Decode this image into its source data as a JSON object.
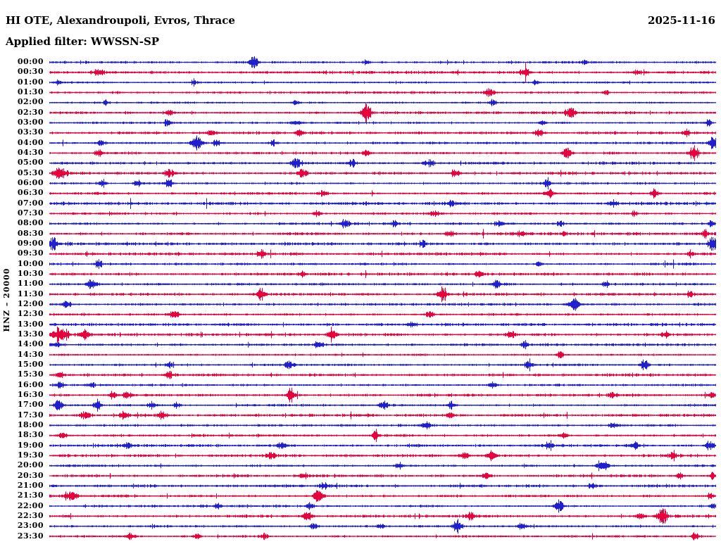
{
  "header": {
    "station_line": "HI OTE, Alexandroupoli, Evros, Thrace",
    "date": "2025-11-16",
    "filter_line": "Applied filter: WWSSN-SP"
  },
  "left_axis_label": "HNZ – 20000",
  "chart_data": {
    "type": "helicorder",
    "title": "HI OTE, Alexandroupoli, Evros, Thrace",
    "date": "2025-11-16",
    "applied_filter": "WWSSN-SP",
    "channel_scale_label": "HNZ – 20000",
    "row_interval_minutes": 30,
    "legend_position": "none",
    "grid": false,
    "palette": {
      "even_rows": "#1f1fd0",
      "odd_rows": "#e8003c"
    },
    "rows": [
      {
        "t": "00:00",
        "c": 0,
        "n": 1.0,
        "ev": [
          [
            360,
            9,
            4
          ],
          [
            520,
            3,
            3
          ],
          [
            830,
            3,
            3
          ]
        ]
      },
      {
        "t": "00:30",
        "c": 1,
        "n": 1.5,
        "ev": [
          [
            140,
            4,
            6
          ],
          [
            745,
            6,
            4
          ],
          [
            905,
            3,
            4
          ]
        ]
      },
      {
        "t": "01:00",
        "c": 0,
        "n": 0.8,
        "ev": [
          [
            82,
            3,
            3
          ],
          [
            275,
            3,
            3
          ],
          [
            760,
            3,
            3
          ]
        ]
      },
      {
        "t": "01:30",
        "c": 1,
        "n": 1.0,
        "ev": [
          [
            695,
            5,
            4
          ],
          [
            860,
            3,
            3
          ]
        ]
      },
      {
        "t": "02:00",
        "c": 0,
        "n": 0.7,
        "ev": [
          [
            150,
            3,
            3
          ],
          [
            420,
            3,
            3
          ],
          [
            700,
            4,
            3
          ]
        ]
      },
      {
        "t": "02:30",
        "c": 1,
        "n": 1.2,
        "ev": [
          [
            240,
            4,
            4
          ],
          [
            520,
            12,
            4
          ],
          [
            810,
            7,
            5
          ]
        ]
      },
      {
        "t": "03:00",
        "c": 0,
        "n": 0.9,
        "ev": [
          [
            237,
            4,
            3
          ],
          [
            420,
            4,
            4
          ],
          [
            770,
            4,
            3
          ],
          [
            1005,
            4,
            3
          ]
        ]
      },
      {
        "t": "03:30",
        "c": 1,
        "n": 1.2,
        "ev": [
          [
            300,
            4,
            4
          ],
          [
            425,
            4,
            4
          ],
          [
            765,
            6,
            4
          ],
          [
            975,
            4,
            3
          ]
        ]
      },
      {
        "t": "04:00",
        "c": 0,
        "n": 1.0,
        "ev": [
          [
            143,
            4,
            3
          ],
          [
            280,
            10,
            5
          ],
          [
            307,
            5,
            3
          ],
          [
            387,
            4,
            3
          ],
          [
            1012,
            13,
            4
          ]
        ]
      },
      {
        "t": "04:30",
        "c": 1,
        "n": 1.1,
        "ev": [
          [
            140,
            5,
            4
          ],
          [
            520,
            4,
            4
          ],
          [
            805,
            8,
            4
          ],
          [
            985,
            11,
            4
          ]
        ]
      },
      {
        "t": "05:00",
        "c": 0,
        "n": 1.4,
        "ev": [
          [
            420,
            6,
            5
          ],
          [
            500,
            4,
            4
          ],
          [
            610,
            4,
            4
          ]
        ]
      },
      {
        "t": "05:30",
        "c": 1,
        "n": 1.2,
        "ev": [
          [
            85,
            9,
            6
          ],
          [
            240,
            5,
            4
          ],
          [
            430,
            6,
            4
          ],
          [
            647,
            4,
            4
          ]
        ]
      },
      {
        "t": "06:00",
        "c": 0,
        "n": 1.0,
        "ev": [
          [
            145,
            5,
            3
          ],
          [
            195,
            5,
            3
          ],
          [
            240,
            8,
            3
          ],
          [
            777,
            5,
            3
          ]
        ]
      },
      {
        "t": "06:30",
        "c": 1,
        "n": 1.1,
        "ev": [
          [
            460,
            4,
            4
          ],
          [
            780,
            5,
            4
          ],
          [
            930,
            5,
            4
          ]
        ]
      },
      {
        "t": "07:00",
        "c": 0,
        "n": 1.6,
        "ev": [
          [
            640,
            4,
            4
          ],
          [
            870,
            4,
            4
          ]
        ]
      },
      {
        "t": "07:30",
        "c": 1,
        "n": 1.1,
        "ev": [
          [
            450,
            4,
            4
          ],
          [
            617,
            4,
            4
          ],
          [
            900,
            3,
            3
          ]
        ]
      },
      {
        "t": "08:00",
        "c": 0,
        "n": 1.0,
        "ev": [
          [
            490,
            6,
            4
          ],
          [
            560,
            4,
            3
          ],
          [
            710,
            5,
            4
          ],
          [
            795,
            4,
            3
          ],
          [
            1010,
            4,
            3
          ]
        ]
      },
      {
        "t": "08:30",
        "c": 1,
        "n": 1.3,
        "ev": [
          [
            640,
            4,
            4
          ],
          [
            740,
            4,
            4
          ],
          [
            800,
            4,
            3
          ],
          [
            1000,
            5,
            3
          ]
        ]
      },
      {
        "t": "09:00",
        "c": 0,
        "n": 1.5,
        "ev": [
          [
            75,
            8,
            5
          ],
          [
            600,
            5,
            3
          ],
          [
            1012,
            10,
            4
          ]
        ]
      },
      {
        "t": "09:30",
        "c": 1,
        "n": 1.3,
        "ev": [
          [
            370,
            5,
            4
          ],
          [
            980,
            4,
            3
          ]
        ]
      },
      {
        "t": "10:00",
        "c": 0,
        "n": 1.0,
        "ev": [
          [
            140,
            6,
            3
          ],
          [
            765,
            4,
            3
          ]
        ]
      },
      {
        "t": "10:30",
        "c": 1,
        "n": 1.2,
        "ev": [
          [
            430,
            4,
            4
          ],
          [
            680,
            4,
            4
          ]
        ]
      },
      {
        "t": "11:00",
        "c": 0,
        "n": 1.1,
        "ev": [
          [
            130,
            7,
            4
          ],
          [
            705,
            5,
            4
          ],
          [
            860,
            4,
            3
          ]
        ]
      },
      {
        "t": "11:30",
        "c": 1,
        "n": 1.2,
        "ev": [
          [
            370,
            9,
            4
          ],
          [
            628,
            9,
            4
          ],
          [
            980,
            4,
            3
          ]
        ]
      },
      {
        "t": "12:00",
        "c": 0,
        "n": 1.2,
        "ev": [
          [
            95,
            5,
            4
          ],
          [
            815,
            9,
            5
          ]
        ]
      },
      {
        "t": "12:30",
        "c": 1,
        "n": 1.0,
        "ev": [
          [
            247,
            6,
            4
          ],
          [
            610,
            4,
            4
          ]
        ]
      },
      {
        "t": "13:00",
        "c": 0,
        "n": 1.4,
        "ev": [
          [
            585,
            4,
            4
          ]
        ]
      },
      {
        "t": "13:30",
        "c": 1,
        "n": 1.2,
        "ev": [
          [
            85,
            10,
            8
          ],
          [
            120,
            7,
            5
          ],
          [
            472,
            9,
            4
          ],
          [
            725,
            6,
            4
          ],
          [
            945,
            4,
            4
          ]
        ]
      },
      {
        "t": "14:00",
        "c": 0,
        "n": 1.1,
        "ev": [
          [
            80,
            4,
            4
          ],
          [
            452,
            5,
            4
          ],
          [
            745,
            6,
            3
          ]
        ]
      },
      {
        "t": "14:30",
        "c": 1,
        "n": 0.9,
        "ev": [
          [
            795,
            5,
            3
          ]
        ]
      },
      {
        "t": "15:00",
        "c": 0,
        "n": 1.0,
        "ev": [
          [
            240,
            4,
            3
          ],
          [
            410,
            7,
            4
          ],
          [
            750,
            6,
            4
          ],
          [
            915,
            6,
            4
          ]
        ]
      },
      {
        "t": "15:30",
        "c": 1,
        "n": 1.3,
        "ev": [
          [
            85,
            4,
            4
          ],
          [
            240,
            5,
            4
          ]
        ]
      },
      {
        "t": "16:00",
        "c": 0,
        "n": 1.1,
        "ev": [
          [
            85,
            5,
            4
          ],
          [
            130,
            4,
            3
          ],
          [
            700,
            4,
            4
          ]
        ]
      },
      {
        "t": "16:30",
        "c": 1,
        "n": 1.2,
        "ev": [
          [
            160,
            5,
            4
          ],
          [
            180,
            6,
            4
          ],
          [
            413,
            9,
            4
          ],
          [
            870,
            4,
            4
          ],
          [
            1012,
            4,
            3
          ]
        ]
      },
      {
        "t": "17:00",
        "c": 0,
        "n": 1.0,
        "ev": [
          [
            83,
            9,
            4
          ],
          [
            138,
            9,
            3
          ],
          [
            215,
            5,
            4
          ],
          [
            250,
            4,
            3
          ],
          [
            545,
            6,
            4
          ],
          [
            640,
            5,
            4
          ]
        ]
      },
      {
        "t": "17:30",
        "c": 1,
        "n": 1.3,
        "ev": [
          [
            120,
            5,
            5
          ],
          [
            175,
            5,
            4
          ],
          [
            230,
            5,
            4
          ],
          [
            640,
            4,
            4
          ]
        ]
      },
      {
        "t": "18:00",
        "c": 0,
        "n": 1.0,
        "ev": [
          [
            605,
            5,
            4
          ],
          [
            870,
            4,
            4
          ]
        ]
      },
      {
        "t": "18:30",
        "c": 1,
        "n": 1.1,
        "ev": [
          [
            90,
            4,
            4
          ],
          [
            533,
            8,
            3
          ],
          [
            800,
            4,
            4
          ]
        ]
      },
      {
        "t": "19:00",
        "c": 0,
        "n": 1.2,
        "ev": [
          [
            180,
            4,
            4
          ],
          [
            400,
            4,
            4
          ],
          [
            780,
            5,
            4
          ],
          [
            900,
            5,
            4
          ],
          [
            1008,
            6,
            4
          ]
        ]
      },
      {
        "t": "19:30",
        "c": 1,
        "n": 1.3,
        "ev": [
          [
            385,
            6,
            4
          ],
          [
            660,
            6,
            4
          ],
          [
            697,
            6,
            4
          ],
          [
            955,
            5,
            4
          ]
        ]
      },
      {
        "t": "20:00",
        "c": 0,
        "n": 1.1,
        "ev": [
          [
            567,
            6,
            3
          ],
          [
            855,
            8,
            5
          ]
        ]
      },
      {
        "t": "20:30",
        "c": 1,
        "n": 1.2,
        "ev": [
          [
            430,
            4,
            4
          ],
          [
            690,
            5,
            4
          ],
          [
            965,
            4,
            3
          ],
          [
            1012,
            5,
            3
          ]
        ]
      },
      {
        "t": "21:00",
        "c": 0,
        "n": 1.3,
        "ev": [
          [
            460,
            4,
            4
          ],
          [
            840,
            4,
            4
          ]
        ]
      },
      {
        "t": "21:30",
        "c": 1,
        "n": 1.2,
        "ev": [
          [
            100,
            6,
            6
          ],
          [
            452,
            11,
            4
          ],
          [
            1008,
            4,
            3
          ]
        ]
      },
      {
        "t": "22:00",
        "c": 0,
        "n": 1.0,
        "ev": [
          [
            310,
            4,
            3
          ],
          [
            440,
            4,
            4
          ],
          [
            793,
            9,
            4
          ],
          [
            1012,
            4,
            3
          ]
        ]
      },
      {
        "t": "22:30",
        "c": 1,
        "n": 1.2,
        "ev": [
          [
            437,
            8,
            4
          ],
          [
            668,
            6,
            4
          ],
          [
            910,
            5,
            4
          ],
          [
            940,
            12,
            5
          ]
        ]
      },
      {
        "t": "23:00",
        "c": 0,
        "n": 1.0,
        "ev": [
          [
            445,
            5,
            4
          ],
          [
            540,
            4,
            3
          ],
          [
            650,
            9,
            4
          ],
          [
            740,
            4,
            4
          ]
        ]
      },
      {
        "t": "23:30",
        "c": 1,
        "n": 0.9,
        "ev": [
          [
            185,
            5,
            4
          ],
          [
            280,
            4,
            3
          ],
          [
            375,
            4,
            3
          ],
          [
            987,
            6,
            3
          ]
        ]
      }
    ]
  }
}
